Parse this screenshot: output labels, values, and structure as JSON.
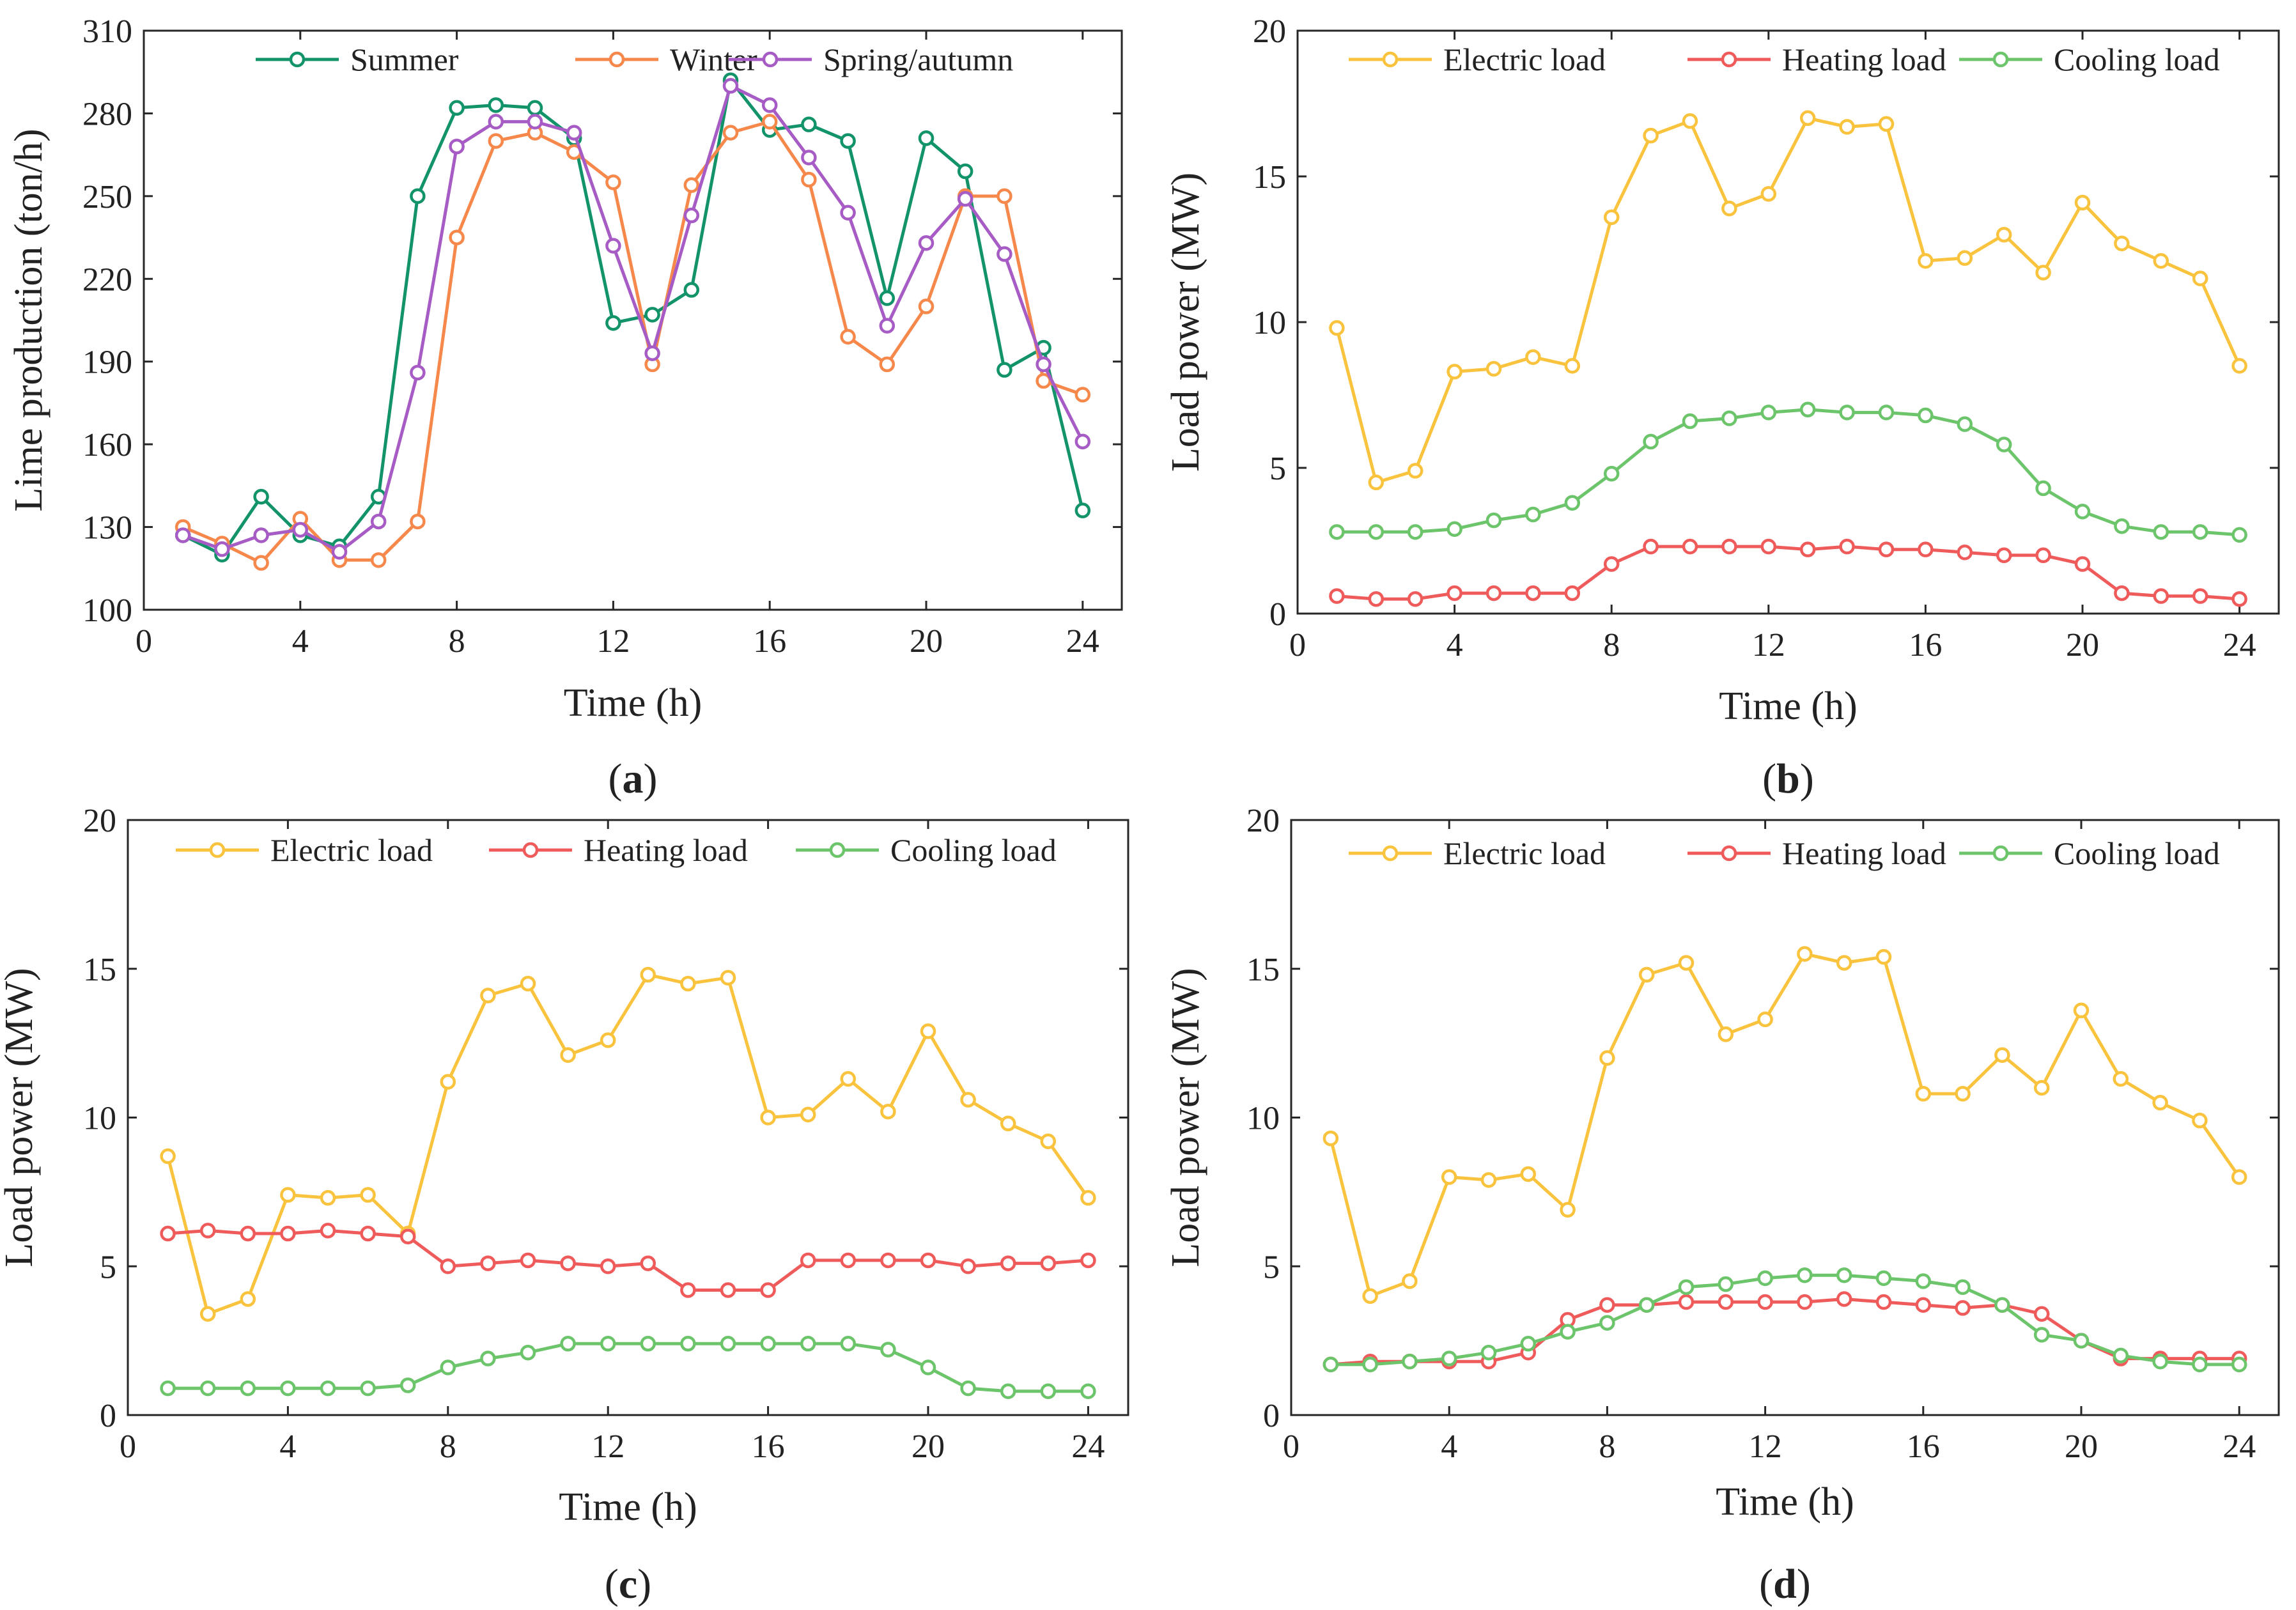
{
  "figure": {
    "panels": [
      {
        "id": "a",
        "open": "(",
        "letter": "a",
        "close": ")"
      },
      {
        "id": "b",
        "open": "(",
        "letter": "b",
        "close": ")"
      },
      {
        "id": "c",
        "open": "(",
        "letter": "c",
        "close": ")"
      },
      {
        "id": "d",
        "open": "(",
        "letter": "d",
        "close": ")"
      }
    ]
  },
  "colors": {
    "summer": "#13936a",
    "winter": "#f5884a",
    "spring_autumn": "#a65cc4",
    "electric": "#f9c33e",
    "heating": "#ef5b5b",
    "cooling": "#6cc46b",
    "axis": "#262626"
  },
  "chart_data": [
    {
      "id": "a",
      "type": "line",
      "xlabel": "Time (h)",
      "ylabel": "Lime production (ton/h)",
      "xlim": [
        0,
        25
      ],
      "ylim": [
        100,
        310
      ],
      "xticks": [
        0,
        4,
        8,
        12,
        16,
        20,
        24
      ],
      "yticks": [
        100,
        130,
        160,
        190,
        220,
        250,
        280,
        310
      ],
      "grid": false,
      "legend_position": "top",
      "x": [
        1,
        2,
        3,
        4,
        5,
        6,
        7,
        8,
        9,
        10,
        11,
        12,
        13,
        14,
        15,
        16,
        17,
        18,
        19,
        20,
        21,
        22,
        23,
        24
      ],
      "series": [
        {
          "name": "Summer",
          "color_key": "summer",
          "values": [
            127,
            120,
            141,
            127,
            123,
            141,
            250,
            282,
            283,
            282,
            271,
            204,
            207,
            216,
            292,
            274,
            276,
            270,
            213,
            271,
            259,
            187,
            195,
            136
          ]
        },
        {
          "name": "Winter",
          "color_key": "winter",
          "values": [
            130,
            124,
            117,
            133,
            118,
            118,
            132,
            235,
            270,
            273,
            266,
            255,
            189,
            254,
            273,
            277,
            256,
            199,
            189,
            210,
            250,
            250,
            183,
            178
          ]
        },
        {
          "name": "Spring/autumn",
          "color_key": "spring_autumn",
          "values": [
            127,
            122,
            127,
            129,
            121,
            132,
            186,
            268,
            277,
            277,
            273,
            232,
            193,
            243,
            290,
            283,
            264,
            244,
            203,
            233,
            249,
            229,
            189,
            161
          ]
        }
      ]
    },
    {
      "id": "b",
      "type": "line",
      "xlabel": "Time (h)",
      "ylabel": "Load power (MW)",
      "xlim": [
        0,
        25
      ],
      "ylim": [
        0,
        20
      ],
      "xticks": [
        0,
        4,
        8,
        12,
        16,
        20,
        24
      ],
      "yticks": [
        0,
        5,
        10,
        15,
        20
      ],
      "grid": false,
      "legend_position": "top",
      "x": [
        1,
        2,
        3,
        4,
        5,
        6,
        7,
        8,
        9,
        10,
        11,
        12,
        13,
        14,
        15,
        16,
        17,
        18,
        19,
        20,
        21,
        22,
        23,
        24
      ],
      "series": [
        {
          "name": "Electric load",
          "color_key": "electric",
          "values": [
            9.8,
            4.5,
            4.9,
            8.3,
            8.4,
            8.8,
            8.5,
            13.6,
            16.4,
            16.9,
            13.9,
            14.4,
            17.0,
            16.7,
            16.8,
            12.1,
            12.2,
            13.0,
            11.7,
            14.1,
            12.7,
            12.1,
            11.5,
            8.5
          ]
        },
        {
          "name": "Heating load",
          "color_key": "heating",
          "values": [
            0.6,
            0.5,
            0.5,
            0.7,
            0.7,
            0.7,
            0.7,
            1.7,
            2.3,
            2.3,
            2.3,
            2.3,
            2.2,
            2.3,
            2.2,
            2.2,
            2.1,
            2.0,
            2.0,
            1.7,
            0.7,
            0.6,
            0.6,
            0.5
          ]
        },
        {
          "name": "Cooling load",
          "color_key": "cooling",
          "values": [
            2.8,
            2.8,
            2.8,
            2.9,
            3.2,
            3.4,
            3.8,
            4.8,
            5.9,
            6.6,
            6.7,
            6.9,
            7.0,
            6.9,
            6.9,
            6.8,
            6.5,
            5.8,
            4.3,
            3.5,
            3.0,
            2.8,
            2.8,
            2.7
          ]
        }
      ]
    },
    {
      "id": "c",
      "type": "line",
      "xlabel": "Time (h)",
      "ylabel": "Load power (MW)",
      "xlim": [
        0,
        25
      ],
      "ylim": [
        0,
        20
      ],
      "xticks": [
        0,
        4,
        8,
        12,
        16,
        20,
        24
      ],
      "yticks": [
        0,
        5,
        10,
        15,
        20
      ],
      "grid": false,
      "legend_position": "top",
      "x": [
        1,
        2,
        3,
        4,
        5,
        6,
        7,
        8,
        9,
        10,
        11,
        12,
        13,
        14,
        15,
        16,
        17,
        18,
        19,
        20,
        21,
        22,
        23,
        24
      ],
      "series": [
        {
          "name": "Electric load",
          "color_key": "electric",
          "values": [
            8.7,
            3.4,
            3.9,
            7.4,
            7.3,
            7.4,
            6.1,
            11.2,
            14.1,
            14.5,
            12.1,
            12.6,
            14.8,
            14.5,
            14.7,
            10.0,
            10.1,
            11.3,
            10.2,
            12.9,
            10.6,
            9.8,
            9.2,
            7.3
          ]
        },
        {
          "name": "Heating load",
          "color_key": "heating",
          "values": [
            6.1,
            6.2,
            6.1,
            6.1,
            6.2,
            6.1,
            6.0,
            5.0,
            5.1,
            5.2,
            5.1,
            5.0,
            5.1,
            4.2,
            4.2,
            4.2,
            5.2,
            5.2,
            5.2,
            5.2,
            5.0,
            5.1,
            5.1,
            5.2
          ]
        },
        {
          "name": "Cooling load",
          "color_key": "cooling",
          "values": [
            0.9,
            0.9,
            0.9,
            0.9,
            0.9,
            0.9,
            1.0,
            1.6,
            1.9,
            2.1,
            2.4,
            2.4,
            2.4,
            2.4,
            2.4,
            2.4,
            2.4,
            2.4,
            2.2,
            1.6,
            0.9,
            0.8,
            0.8,
            0.8
          ]
        }
      ]
    },
    {
      "id": "d",
      "type": "line",
      "xlabel": "Time (h)",
      "ylabel": "Load power (MW)",
      "xlim": [
        0,
        25
      ],
      "ylim": [
        0,
        20
      ],
      "xticks": [
        0,
        4,
        8,
        12,
        16,
        20,
        24
      ],
      "yticks": [
        0,
        5,
        10,
        15,
        20
      ],
      "grid": false,
      "legend_position": "top",
      "x": [
        1,
        2,
        3,
        4,
        5,
        6,
        7,
        8,
        9,
        10,
        11,
        12,
        13,
        14,
        15,
        16,
        17,
        18,
        19,
        20,
        21,
        22,
        23,
        24
      ],
      "series": [
        {
          "name": "Electric load",
          "color_key": "electric",
          "values": [
            9.3,
            4.0,
            4.5,
            8.0,
            7.9,
            8.1,
            6.9,
            12.0,
            14.8,
            15.2,
            12.8,
            13.3,
            15.5,
            15.2,
            15.4,
            10.8,
            10.8,
            12.1,
            11.0,
            13.6,
            11.3,
            10.5,
            9.9,
            8.0
          ]
        },
        {
          "name": "Heating load",
          "color_key": "heating",
          "values": [
            1.7,
            1.8,
            1.8,
            1.8,
            1.8,
            2.1,
            3.2,
            3.7,
            3.7,
            3.8,
            3.8,
            3.8,
            3.8,
            3.9,
            3.8,
            3.7,
            3.6,
            3.7,
            3.4,
            2.5,
            1.9,
            1.9,
            1.9,
            1.9
          ]
        },
        {
          "name": "Cooling load",
          "color_key": "cooling",
          "values": [
            1.7,
            1.7,
            1.8,
            1.9,
            2.1,
            2.4,
            2.8,
            3.1,
            3.7,
            4.3,
            4.4,
            4.6,
            4.7,
            4.7,
            4.6,
            4.5,
            4.3,
            3.7,
            2.7,
            2.5,
            2.0,
            1.8,
            1.7,
            1.7
          ]
        }
      ]
    }
  ]
}
